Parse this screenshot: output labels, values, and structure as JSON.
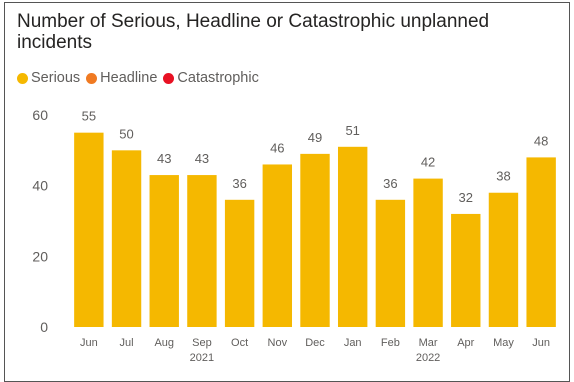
{
  "chart_data": {
    "type": "bar",
    "title": "Number of Serious, Headline or Catastrophic unplanned incidents",
    "legend": {
      "placement": "top-left",
      "items": [
        {
          "name": "Serious",
          "color": "#F5B800"
        },
        {
          "name": "Headline",
          "color": "#F07A22"
        },
        {
          "name": "Catastrophic",
          "color": "#E81123"
        }
      ]
    },
    "categories": [
      "Jun",
      "Jul",
      "Aug",
      "Sep",
      "Oct",
      "Nov",
      "Dec",
      "Jan",
      "Feb",
      "Mar",
      "Apr",
      "May",
      "Jun"
    ],
    "year_labels": [
      {
        "category_index": 3,
        "label": "2021"
      },
      {
        "category_index": 9,
        "label": "2022"
      }
    ],
    "series": [
      {
        "name": "Serious",
        "color": "#F5B800",
        "values": [
          55,
          50,
          43,
          43,
          36,
          46,
          49,
          51,
          36,
          42,
          32,
          38,
          48
        ]
      }
    ],
    "ylim": [
      0,
      62
    ],
    "yticks": [
      0,
      20,
      40,
      60
    ],
    "grid": false,
    "data_labels": true
  }
}
